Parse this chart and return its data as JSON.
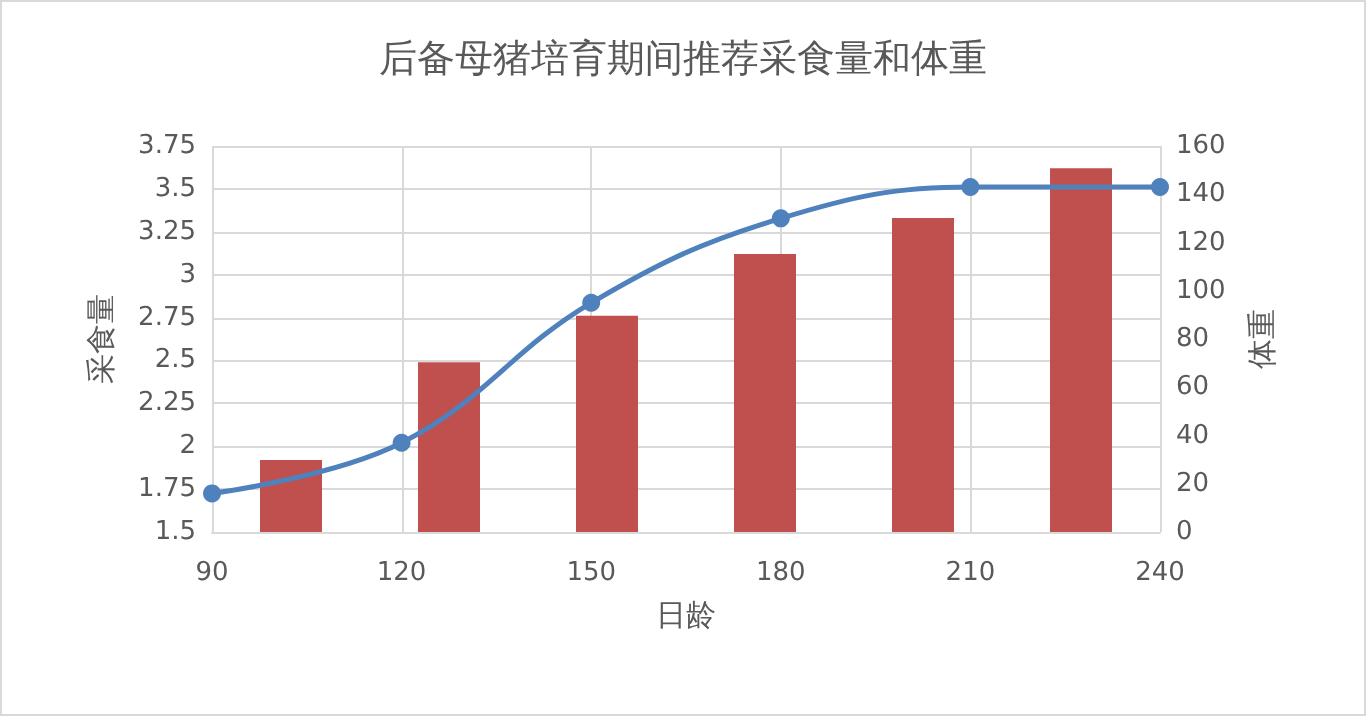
{
  "chart_data": {
    "type": "bar",
    "title": "后备母猪培育期间推荐采食量和体重",
    "xlabel": "日龄",
    "ylabel": "采食量",
    "y2label": "体重",
    "xlim": [
      90,
      240
    ],
    "xticks": [
      90,
      120,
      150,
      180,
      210,
      240
    ],
    "ylim": [
      1.5,
      3.75
    ],
    "yticks": [
      1.5,
      1.75,
      2,
      2.25,
      2.5,
      2.75,
      3,
      3.25,
      3.5,
      3.75
    ],
    "y2lim": [
      0,
      160
    ],
    "y2ticks": [
      0,
      20,
      40,
      60,
      80,
      100,
      120,
      140,
      160
    ],
    "grid": true,
    "marker": "circle",
    "line_style": "solid",
    "series": [
      {
        "color": "#c0504d",
        "x": [
          102.5,
          127.5,
          152.5,
          177.5,
          202.5,
          227.5
        ],
        "values": [
          1.92,
          2.49,
          2.76,
          3.12,
          3.33,
          3.62
        ]
      },
      {
        "type": "line",
        "axis": "y2",
        "color": "#4f81bd",
        "x": [
          90,
          120,
          150,
          180,
          210,
          240
        ],
        "values": [
          16,
          37,
          95,
          130,
          143,
          143
        ]
      }
    ]
  }
}
